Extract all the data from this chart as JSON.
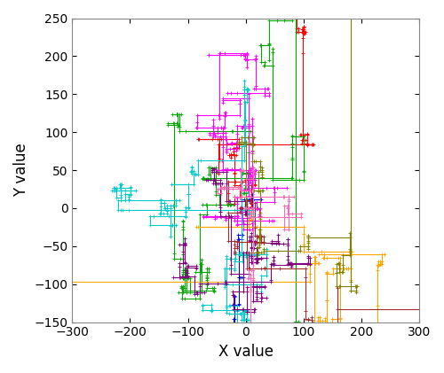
{
  "title": "",
  "xlabel": "X value",
  "ylabel": "Y value",
  "xlim": [
    -300,
    300
  ],
  "ylim": [
    -150,
    250
  ],
  "xticks": [
    -300,
    -200,
    -100,
    0,
    100,
    200,
    300
  ],
  "yticks": [
    -150,
    -100,
    -50,
    0,
    50,
    100,
    150,
    200,
    250
  ],
  "figsize": [
    5.0,
    4.21
  ],
  "dpi": 100,
  "num_walkers": 10,
  "num_steps": 200,
  "levy_alpha": 1.5,
  "seed": 42,
  "colors": [
    "#0000FF",
    "#FF0000",
    "#00AA00",
    "#FF00FF",
    "#FFA500",
    "#00CCCC",
    "#800080",
    "#A52A2A",
    "#808000",
    "#FF69B4"
  ],
  "linewidth": 0.8,
  "background": "#FFFFFF"
}
